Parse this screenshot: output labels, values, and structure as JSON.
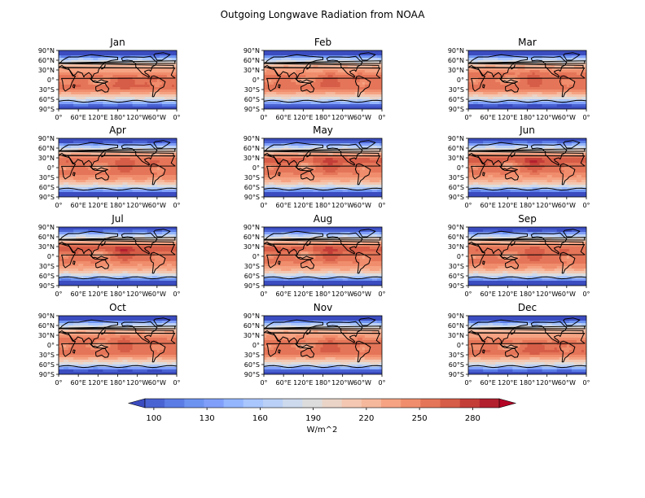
{
  "title": "Outgoing Longwave Radiation from NOAA",
  "months": [
    "Jan",
    "Feb",
    "Mar",
    "Apr",
    "May",
    "Jun",
    "Jul",
    "Aug",
    "Sep",
    "Oct",
    "Nov",
    "Dec"
  ],
  "lat_ticks": [
    "90°N",
    "60°N",
    "30°N",
    "0°",
    "30°S",
    "60°S",
    "90°S"
  ],
  "lon_ticks": [
    "0°",
    "60°E",
    "120°E",
    "180°",
    "120°W",
    "60°W",
    "0°"
  ],
  "colorbar": {
    "label": "W/m^2",
    "ticks": [
      "100",
      "130",
      "160",
      "190",
      "220",
      "250",
      "280"
    ],
    "colormap": "coolwarm",
    "extend": "both",
    "colors": [
      "#3b4cc0",
      "#4a63d3",
      "#5b7ce5",
      "#6d93f1",
      "#809ffa",
      "#94b6ff",
      "#a9c6fd",
      "#bbd0f6",
      "#cdd9ec",
      "#dddcdc",
      "#ead4c8",
      "#f3c7b1",
      "#f6b89c",
      "#f5a383",
      "#f08d6c",
      "#e57558",
      "#d65d47",
      "#c43e38",
      "#b2202e",
      "#b40426"
    ]
  }
}
